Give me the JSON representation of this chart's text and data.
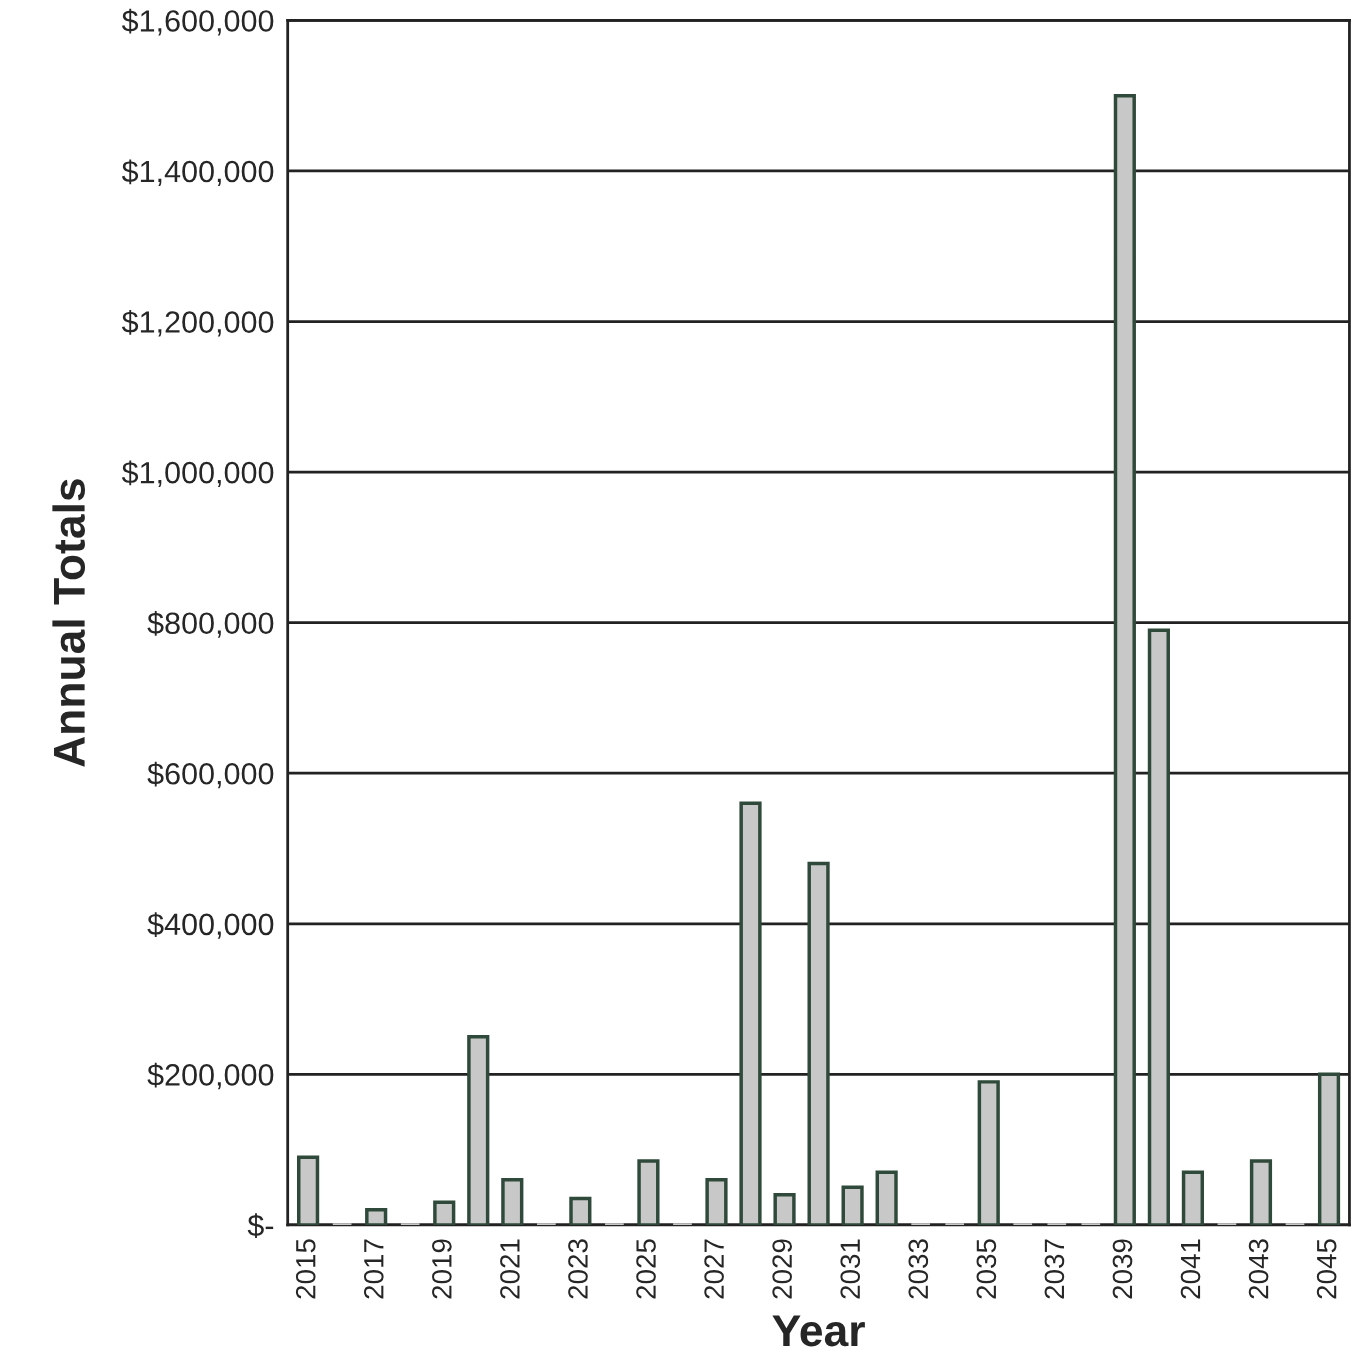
{
  "chart_data": {
    "type": "bar",
    "xlabel": "Year",
    "ylabel": "Annual Totals",
    "categories": [
      "2015",
      null,
      "2017",
      null,
      "2019",
      null,
      "2021",
      null,
      "2023",
      null,
      "2025",
      null,
      "2027",
      null,
      "2029",
      null,
      "2031",
      null,
      "2033",
      null,
      "2035",
      null,
      "2037",
      null,
      "2039",
      null,
      "2041",
      null,
      "2043",
      null,
      "2045"
    ],
    "series": [
      {
        "color": "#c8c8c8",
        "values": [
          90000,
          0,
          20000,
          0,
          30000,
          250000,
          60000,
          0,
          35000,
          0,
          85000,
          0,
          60000,
          560000,
          40000,
          480000,
          50000,
          70000,
          0,
          0,
          190000,
          0,
          0,
          0,
          1500000,
          790000,
          70000,
          0,
          85000,
          0,
          200000
        ]
      }
    ],
    "ylim": [
      0,
      1600000
    ],
    "yticks": [
      {
        "value": 0,
        "label": "$-"
      },
      {
        "value": 200000,
        "label": "$200,000"
      },
      {
        "value": 400000,
        "label": "$400,000"
      },
      {
        "value": 600000,
        "label": "$600,000"
      },
      {
        "value": 800000,
        "label": "$800,000"
      },
      {
        "value": 1000000,
        "label": "$1,000,000"
      },
      {
        "value": 1200000,
        "label": "$1,200,000"
      },
      {
        "value": 1400000,
        "label": "$1,400,000"
      },
      {
        "value": 1600000,
        "label": "$1,600,000"
      }
    ],
    "grid": "y",
    "legend": false
  }
}
